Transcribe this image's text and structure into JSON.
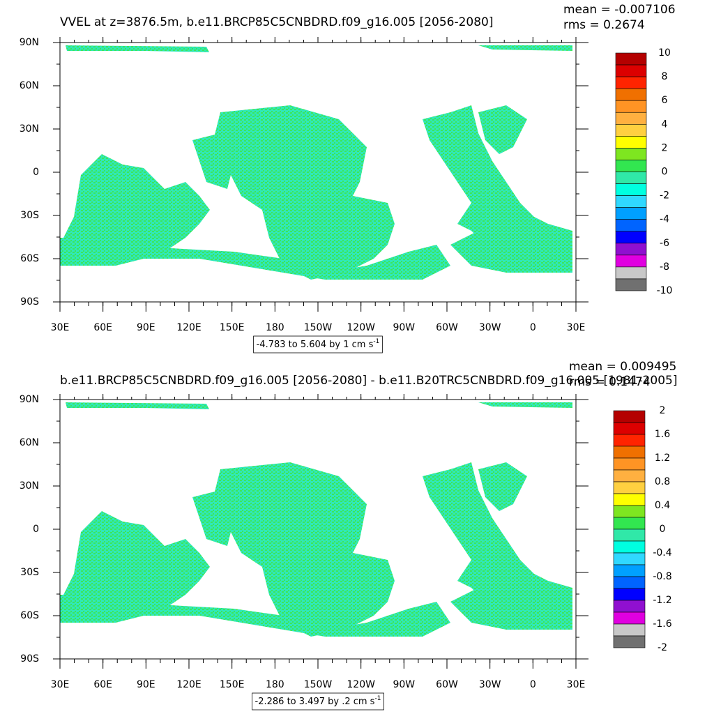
{
  "panels": [
    {
      "title": "VVEL at z=3876.5m, b.e11.BRCP85C5CNBDRD.f09_g16.005 [2056-2080]",
      "mean": "mean = -0.007106",
      "rms": "rms = 0.2674",
      "lat_labels": [
        "90N",
        "60N",
        "30N",
        "0",
        "30S",
        "60S",
        "90S"
      ],
      "lon_labels": [
        "30E",
        "60E",
        "90E",
        "120E",
        "150E",
        "180",
        "150W",
        "120W",
        "90W",
        "60W",
        "30W",
        "0",
        "30E"
      ],
      "info": "-4.783 to 5.604 by 1 cm s",
      "info_sup": "-1",
      "colorbar": {
        "labels": [
          10,
          8,
          6,
          4,
          2,
          0,
          -2,
          -4,
          -6,
          -8,
          -10
        ],
        "colors": [
          "#b40000",
          "#dc0000",
          "#ff2400",
          "#f07000",
          "#ff9424",
          "#ffb040",
          "#ffd040",
          "#ffff00",
          "#7ee620",
          "#32e650",
          "#30e8a8",
          "#00ffe0",
          "#30d8ff",
          "#00a0ff",
          "#0064ff",
          "#0000ff",
          "#9010d0",
          "#e000e0",
          "#c8c8c8",
          "#707070"
        ]
      }
    },
    {
      "title": "b.e11.BRCP85C5CNBDRD.f09_g16.005 [2056-2080] - b.e11.B20TRC5CNBDRD.f09_g16.005 [1981-2005]",
      "mean": "mean = 0.009495",
      "rms": "rms = 0.1474",
      "lat_labels": [
        "90N",
        "60N",
        "30N",
        "0",
        "30S",
        "60S",
        "90S"
      ],
      "lon_labels": [
        "30E",
        "60E",
        "90E",
        "120E",
        "150E",
        "180",
        "150W",
        "120W",
        "90W",
        "60W",
        "30W",
        "0",
        "30E"
      ],
      "info": "-2.286 to 3.497 by .2 cm s",
      "info_sup": "-1",
      "colorbar": {
        "labels": [
          2,
          1.6,
          1.2,
          0.8,
          0.4,
          0,
          -0.4,
          -0.8,
          -1.2,
          -1.6,
          -2
        ],
        "colors": [
          "#b40000",
          "#dc0000",
          "#ff2400",
          "#f07000",
          "#ff9424",
          "#ffb040",
          "#ffd040",
          "#ffff00",
          "#7ee620",
          "#32e650",
          "#30e8a8",
          "#00ffe0",
          "#30d8ff",
          "#00a0ff",
          "#0064ff",
          "#0000ff",
          "#9010d0",
          "#e000e0",
          "#c8c8c8",
          "#707070"
        ]
      }
    }
  ]
}
